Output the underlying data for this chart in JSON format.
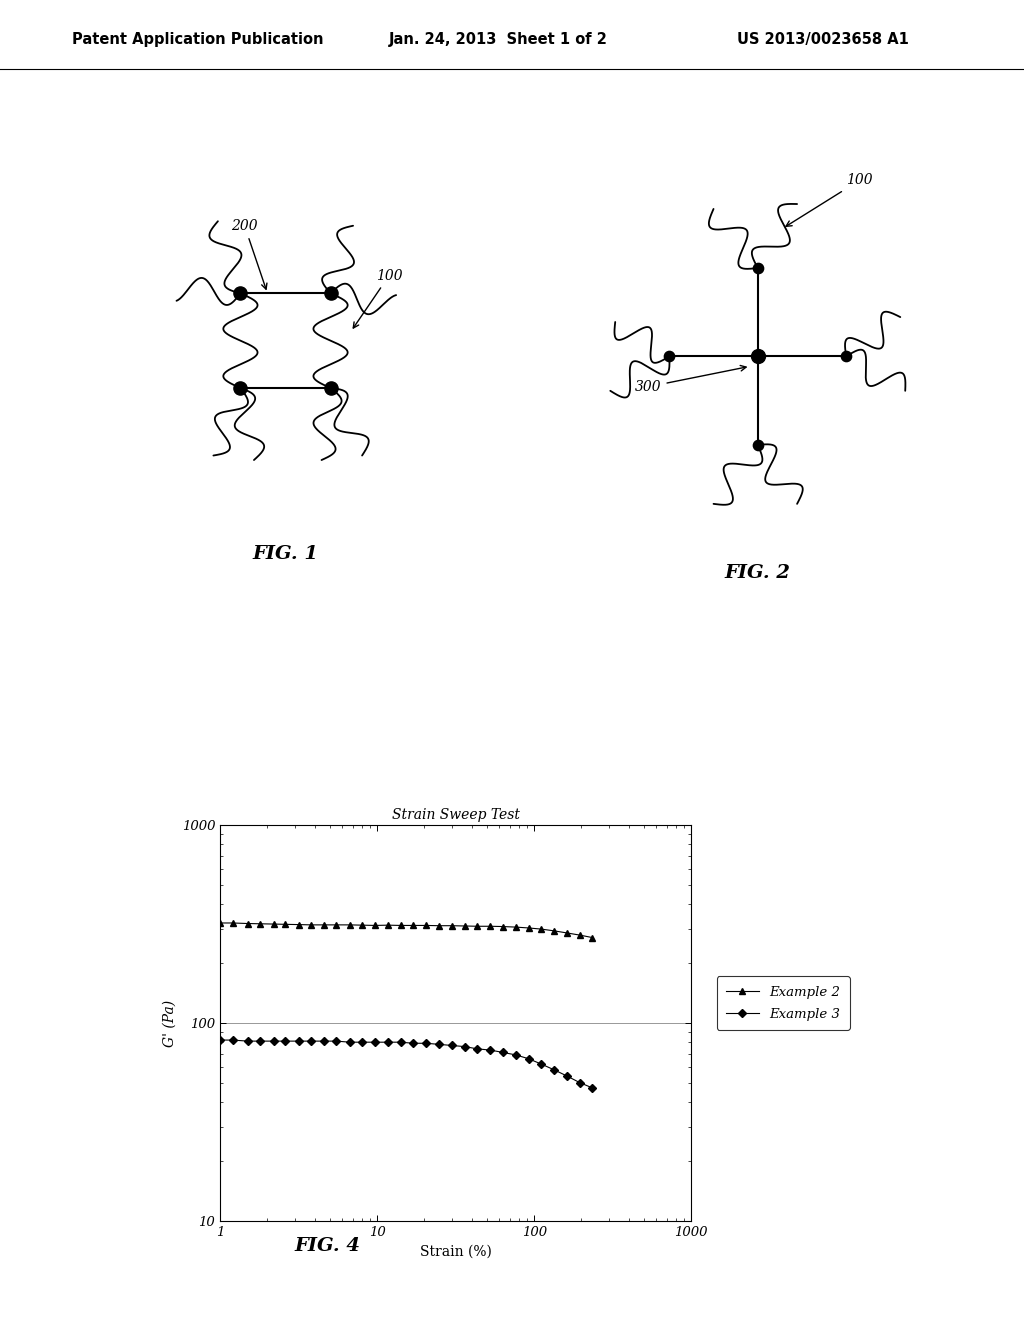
{
  "bg_color": "#ffffff",
  "header_text": "Patent Application Publication",
  "header_date": "Jan. 24, 2013  Sheet 1 of 2",
  "header_patent": "US 2013/0023658 A1",
  "fig1_label": "FIG. 1",
  "fig2_label": "FIG. 2",
  "fig4_label": "FIG. 4",
  "fig4_title": "Strain Sweep Test",
  "fig4_xlabel": "Strain (%)",
  "fig4_ylabel": "G' (Pa)",
  "legend_entries": [
    "Example 2",
    "Example 3"
  ],
  "label_200": "200",
  "label_100_fig1": "100",
  "label_100_fig2": "100",
  "label_300": "300",
  "example2_x": [
    1.0,
    1.2,
    1.5,
    1.8,
    2.2,
    2.6,
    3.2,
    3.8,
    4.6,
    5.5,
    6.7,
    8.0,
    9.7,
    11.7,
    14.1,
    17.0,
    20.5,
    24.8,
    29.9,
    36.1,
    43.5,
    52.5,
    63.3,
    76.4,
    92.1,
    111.1,
    134.0,
    161.6,
    194.9,
    235.0
  ],
  "example2_y": [
    320,
    320,
    318,
    317,
    316,
    315,
    314,
    313,
    313,
    313,
    313,
    312,
    311,
    312,
    311,
    311,
    311,
    310,
    310,
    309,
    308,
    308,
    307,
    305,
    302,
    298,
    292,
    285,
    278,
    270
  ],
  "example3_x": [
    1.0,
    1.2,
    1.5,
    1.8,
    2.2,
    2.6,
    3.2,
    3.8,
    4.6,
    5.5,
    6.7,
    8.0,
    9.7,
    11.7,
    14.1,
    17.0,
    20.5,
    24.8,
    29.9,
    36.1,
    43.5,
    52.5,
    63.3,
    76.4,
    92.1,
    111.1,
    134.0,
    161.6,
    194.9,
    235.0
  ],
  "example3_y": [
    82,
    82,
    81,
    81,
    81,
    81,
    81,
    81,
    81,
    81,
    80,
    80,
    80,
    80,
    80,
    79,
    79,
    78,
    77,
    76,
    74,
    73,
    71,
    69,
    66,
    62,
    58,
    54,
    50,
    47
  ]
}
